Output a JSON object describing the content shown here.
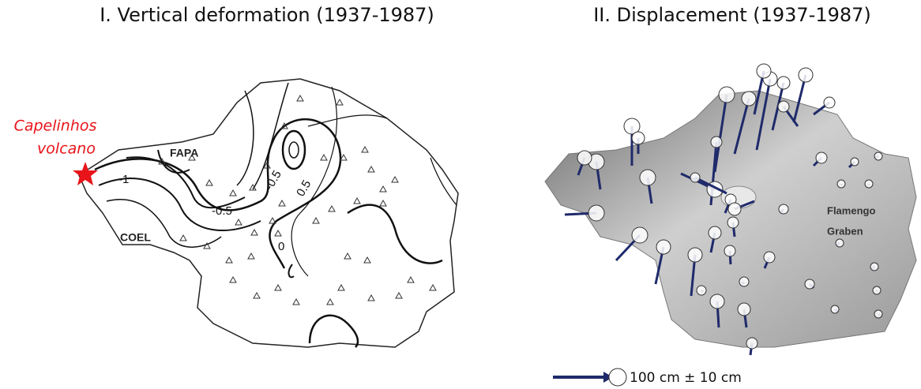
{
  "panels": [
    {
      "title": "I. Vertical deformation (1937-1987)",
      "volcano_label": [
        "Capelinhos",
        "volcano"
      ],
      "site_labels": [
        "FAPA",
        "COEL"
      ],
      "contour_labels": [
        "-1",
        "-0.5",
        "-0.5",
        "0.5",
        "0"
      ]
    },
    {
      "title": "II. Displacement (1937-1987)",
      "region_label": [
        "Flamengo",
        "Graben"
      ],
      "legend_label": "100 cm ± 10 cm"
    }
  ]
}
